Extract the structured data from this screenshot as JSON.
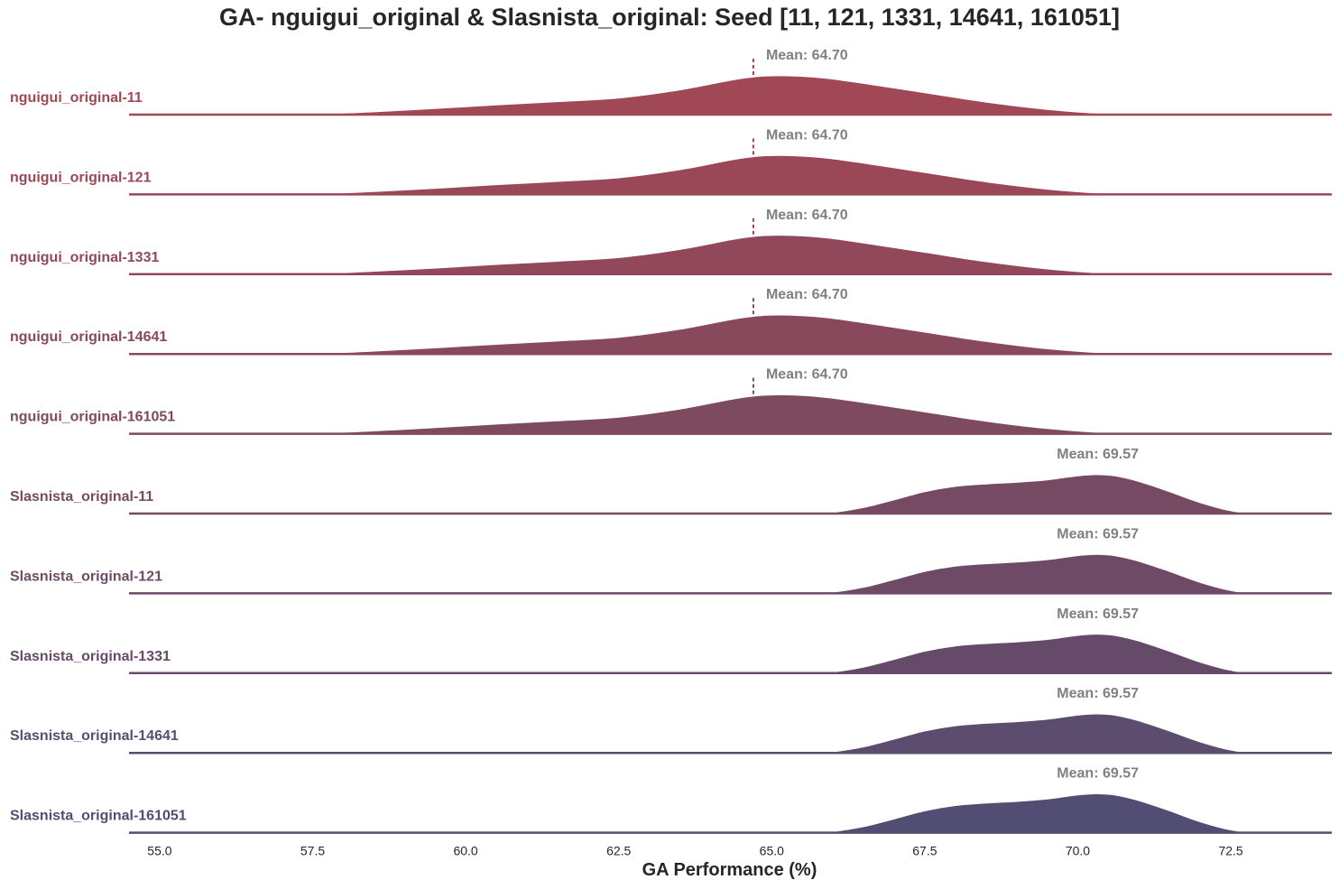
{
  "chart_data": {
    "type": "ridgeline",
    "title": "GA- nguigui_original & Slasnista_original: Seed [11, 121, 1331, 14641, 161051]",
    "xlabel": "GA Performance (%)",
    "xlim": [
      54.5,
      74.15
    ],
    "xticks": [
      55.0,
      57.5,
      60.0,
      62.5,
      65.0,
      67.5,
      70.0,
      72.5
    ],
    "xtick_labels": [
      "55.0",
      "57.5",
      "60.0",
      "62.5",
      "65.0",
      "67.5",
      "70.0",
      "72.5"
    ],
    "mean_label_prefix": "Mean: ",
    "series": [
      {
        "name": "nguigui_original-11",
        "group": "nguigui",
        "mean": 64.7,
        "mean_label": "Mean: 64.70",
        "color": "#a14856"
      },
      {
        "name": "nguigui_original-121",
        "group": "nguigui",
        "mean": 64.7,
        "mean_label": "Mean: 64.70",
        "color": "#9a4858"
      },
      {
        "name": "nguigui_original-1331",
        "group": "nguigui",
        "mean": 64.7,
        "mean_label": "Mean: 64.70",
        "color": "#91485a"
      },
      {
        "name": "nguigui_original-14641",
        "group": "nguigui",
        "mean": 64.7,
        "mean_label": "Mean: 64.70",
        "color": "#88495d"
      },
      {
        "name": "nguigui_original-161051",
        "group": "nguigui",
        "mean": 64.7,
        "mean_label": "Mean: 64.70",
        "color": "#7e4a60"
      },
      {
        "name": "Slasnista_original-11",
        "group": "Slasnista",
        "mean": 69.57,
        "mean_label": "Mean: 69.57",
        "color": "#774a63"
      },
      {
        "name": "Slasnista_original-121",
        "group": "Slasnista",
        "mean": 69.57,
        "mean_label": "Mean: 69.57",
        "color": "#6e4a66"
      },
      {
        "name": "Slasnista_original-1331",
        "group": "Slasnista",
        "mean": 69.57,
        "mean_label": "Mean: 69.57",
        "color": "#654b69"
      },
      {
        "name": "Slasnista_original-14641",
        "group": "Slasnista",
        "mean": 69.57,
        "mean_label": "Mean: 69.57",
        "color": "#5c4c6d"
      },
      {
        "name": "Slasnista_original-161051",
        "group": "Slasnista",
        "mean": 69.57,
        "mean_label": "Mean: 69.57",
        "color": "#514d73"
      }
    ],
    "density_curves": {
      "nguigui": {
        "x": [
          54.5,
          56.0,
          57.5,
          59.0,
          60.5,
          61.5,
          62.5,
          63.5,
          64.5,
          65.1,
          65.8,
          66.5,
          67.5,
          68.5,
          69.5,
          70.5,
          71.5,
          73.0,
          74.15
        ],
        "density": [
          0.0,
          0.0,
          0.02,
          0.12,
          0.25,
          0.33,
          0.42,
          0.62,
          0.9,
          0.97,
          0.92,
          0.78,
          0.55,
          0.32,
          0.14,
          0.03,
          0.0,
          0.0,
          0.0
        ]
      },
      "Slasnista": {
        "x": [
          54.5,
          60.0,
          65.5,
          66.0,
          66.5,
          67.0,
          67.5,
          68.0,
          68.5,
          69.0,
          69.5,
          70.0,
          70.3,
          70.6,
          71.0,
          71.5,
          72.0,
          72.5,
          73.0,
          74.15
        ],
        "density": [
          0.0,
          0.0,
          0.0,
          0.04,
          0.16,
          0.35,
          0.55,
          0.68,
          0.74,
          0.78,
          0.84,
          0.94,
          0.97,
          0.94,
          0.8,
          0.55,
          0.28,
          0.08,
          0.0,
          0.0
        ]
      }
    },
    "legend": "none",
    "grid": false
  }
}
